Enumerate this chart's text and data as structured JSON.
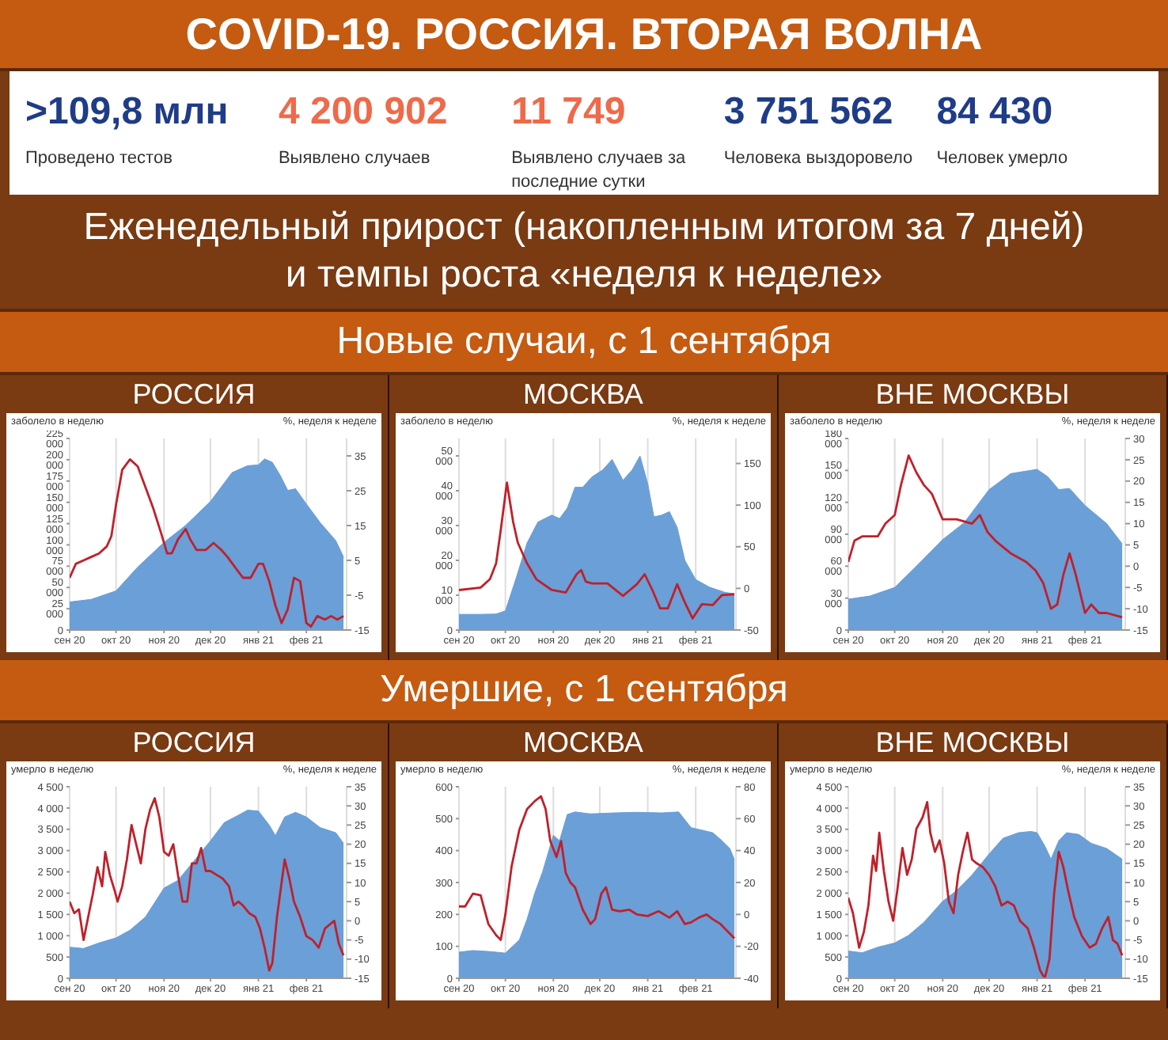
{
  "chart_data": [
    {
      "type": "other",
      "title": "COVID-19. РОССИЯ. ВТОРАЯ ВОЛНА",
      "annotations": [
        ">109,8 млн",
        "Проведено тестов",
        "4 200 902",
        "Выявлено случаев",
        "11 749",
        "Выявлено случаев за последние сутки",
        "3 751 562",
        "Человека выздоровело",
        "84 430",
        "Человек умерло"
      ]
    },
    {
      "type": "other",
      "title": "Еженедельный прирост (накопленным итогом за 7 дней)",
      "subtitle": "и темпы роста «неделя к неделе»"
    },
    {
      "type": "other",
      "title": "Новые случаи, с 1 сентября"
    },
    {
      "type": "area",
      "title": "РОССИЯ",
      "ylabel": "заболело в неделю",
      "y2label": "%, неделя к неделе",
      "grid": "x",
      "xlim": [
        "2020-09-01",
        "2021-02-27"
      ],
      "xticks": [
        {
          "value": "2020-09-01",
          "label": "сен 20"
        },
        {
          "value": "2020-10-01",
          "label": "окт 20"
        },
        {
          "value": "2020-11-01",
          "label": "ноя 20"
        },
        {
          "value": "2020-12-01",
          "label": "дек 20"
        },
        {
          "value": "2021-01-01",
          "label": "янв 21"
        },
        {
          "value": "2021-02-01",
          "label": "фев 21"
        }
      ],
      "ylim": [
        0,
        225000
      ],
      "yticks": [
        0,
        {
          "value": 25000,
          "label": "25 000"
        },
        {
          "value": 50000,
          "label": "50 000"
        },
        {
          "value": 75000,
          "label": "75 000"
        },
        {
          "value": 100000,
          "label": "100 000"
        },
        {
          "value": 125000,
          "label": "125 000"
        },
        {
          "value": 150000,
          "label": "150 000"
        },
        {
          "value": 175000,
          "label": "175 000"
        },
        {
          "value": 200000,
          "label": "200 000"
        },
        {
          "value": 225000,
          "label": "225 000"
        }
      ],
      "y2lim": [
        -15,
        40
      ],
      "y2ticks": [
        -15,
        -5,
        5,
        15,
        25,
        35
      ],
      "series": [
        {
          "type": "area",
          "color": "#6a9fd8",
          "x": [
            "2020-09-01",
            "2020-09-15",
            "2020-10-01",
            "2020-10-15",
            "2020-11-01",
            "2020-11-15",
            "2020-12-01",
            "2020-12-15",
            "2020-12-25",
            "2021-01-01",
            "2021-01-05",
            "2021-01-10",
            "2021-01-15",
            "2021-01-20",
            "2021-01-25",
            "2021-02-01",
            "2021-02-10",
            "2021-02-20",
            "2021-02-25"
          ],
          "values": [
            33000,
            36000,
            46000,
            74000,
            103000,
            123000,
            151000,
            185000,
            193000,
            194000,
            201000,
            197000,
            182000,
            164000,
            166000,
            148000,
            126000,
            105000,
            86000
          ]
        },
        {
          "type": "line",
          "axis": "y2",
          "color": "#c0202a",
          "x": [
            "2020-09-01",
            "2020-09-05",
            "2020-09-10",
            "2020-09-15",
            "2020-09-20",
            "2020-09-25",
            "2020-09-28",
            "2020-10-01",
            "2020-10-05",
            "2020-10-10",
            "2020-10-15",
            "2020-10-20",
            "2020-10-25",
            "2020-10-30",
            "2020-11-03",
            "2020-11-06",
            "2020-11-10",
            "2020-11-15",
            "2020-11-18",
            "2020-11-22",
            "2020-11-28",
            "2020-12-03",
            "2020-12-08",
            "2020-12-12",
            "2020-12-17",
            "2020-12-22",
            "2020-12-27",
            "2021-01-01",
            "2021-01-04",
            "2021-01-08",
            "2021-01-12",
            "2021-01-16",
            "2021-01-20",
            "2021-01-24",
            "2021-01-28",
            "2021-02-01",
            "2021-02-04",
            "2021-02-08",
            "2021-02-13",
            "2021-02-17",
            "2021-02-21",
            "2021-02-25"
          ],
          "values": [
            0,
            4,
            5,
            6,
            7,
            9,
            12,
            21,
            31,
            34,
            32,
            26,
            20,
            13,
            7,
            7,
            11,
            14,
            11,
            8,
            8,
            10,
            8,
            6,
            3,
            0,
            0,
            4,
            4,
            -1,
            -8,
            -13,
            -9,
            0,
            -1,
            -13,
            -14,
            -11,
            -12,
            -11,
            -12,
            -11
          ]
        }
      ]
    },
    {
      "type": "area",
      "title": "МОСКВА",
      "ylabel": "заболело в неделю",
      "y2label": "%, неделя к неделе",
      "grid": "x",
      "xlim": [
        "2020-09-01",
        "2021-02-27"
      ],
      "xticks": [
        {
          "value": "2020-09-01",
          "label": "сен 20"
        },
        {
          "value": "2020-10-01",
          "label": "окт 20"
        },
        {
          "value": "2020-11-01",
          "label": "ноя 20"
        },
        {
          "value": "2020-12-01",
          "label": "дек 20"
        },
        {
          "value": "2021-01-01",
          "label": "янв 21"
        },
        {
          "value": "2021-02-01",
          "label": "фев 21"
        }
      ],
      "ylim": [
        0,
        55000
      ],
      "yticks": [
        0,
        {
          "value": 10000,
          "label": "10 000"
        },
        {
          "value": 20000,
          "label": "20 000"
        },
        {
          "value": 30000,
          "label": "30 000"
        },
        {
          "value": 40000,
          "label": "40 000"
        },
        {
          "value": 50000,
          "label": "50 000"
        }
      ],
      "y2lim": [
        -50,
        180
      ],
      "y2ticks": [
        -50,
        0,
        50,
        100,
        150
      ],
      "series": [
        {
          "type": "area",
          "color": "#6a9fd8",
          "x": [
            "2020-09-01",
            "2020-09-15",
            "2020-09-25",
            "2020-10-01",
            "2020-10-08",
            "2020-10-15",
            "2020-10-22",
            "2020-10-31",
            "2020-11-05",
            "2020-11-10",
            "2020-11-15",
            "2020-11-20",
            "2020-11-26",
            "2020-12-03",
            "2020-12-09",
            "2020-12-16",
            "2020-12-22",
            "2020-12-27",
            "2021-01-01",
            "2021-01-05",
            "2021-01-10",
            "2021-01-15",
            "2021-01-20",
            "2021-01-25",
            "2021-02-01",
            "2021-02-10",
            "2021-02-20",
            "2021-02-26"
          ],
          "values": [
            4500,
            4500,
            4600,
            5500,
            15000,
            25000,
            31000,
            33000,
            32000,
            35000,
            41000,
            41000,
            44000,
            46000,
            49000,
            43000,
            46000,
            50000,
            42000,
            32500,
            33000,
            34000,
            29500,
            20000,
            14500,
            12300,
            10800,
            10400
          ]
        },
        {
          "type": "line",
          "axis": "y2",
          "color": "#c0202a",
          "x": [
            "2020-09-01",
            "2020-09-15",
            "2020-09-21",
            "2020-09-25",
            "2020-09-28",
            "2020-10-02",
            "2020-10-06",
            "2020-10-09",
            "2020-10-15",
            "2020-10-21",
            "2020-10-31",
            "2020-11-09",
            "2020-11-16",
            "2020-11-19",
            "2020-11-22",
            "2020-11-26",
            "2020-12-06",
            "2020-12-16",
            "2020-12-25",
            "2020-12-30",
            "2021-01-04",
            "2021-01-09",
            "2021-01-14",
            "2021-01-20",
            "2021-01-25",
            "2021-01-30",
            "2021-02-05",
            "2021-02-12",
            "2021-02-18",
            "2021-02-26"
          ],
          "values": [
            -2,
            1,
            11,
            30,
            70,
            127,
            80,
            55,
            30,
            11,
            -2,
            -5,
            17,
            22,
            8,
            6,
            6,
            -9,
            5,
            17,
            -2,
            -24,
            -24,
            5,
            -17,
            -36,
            -19,
            -20,
            -8,
            -7
          ]
        }
      ]
    },
    {
      "type": "area",
      "title": "ВНЕ МОСКВЫ",
      "ylabel": "заболело в неделю",
      "y2label": "%, неделя к неделе",
      "grid": "x",
      "xlim": [
        "2020-09-01",
        "2021-02-27"
      ],
      "xticks": [
        {
          "value": "2020-09-01",
          "label": "сен 20"
        },
        {
          "value": "2020-10-01",
          "label": "окт 20"
        },
        {
          "value": "2020-11-01",
          "label": "ноя 20"
        },
        {
          "value": "2020-12-01",
          "label": "дек 20"
        },
        {
          "value": "2021-01-01",
          "label": "янв 21"
        },
        {
          "value": "2021-02-01",
          "label": "фев 21"
        }
      ],
      "ylim": [
        0,
        180000
      ],
      "yticks": [
        0,
        {
          "value": 30000,
          "label": "30 000"
        },
        {
          "value": 60000,
          "label": "60 000"
        },
        {
          "value": 90000,
          "label": "90 000"
        },
        {
          "value": 120000,
          "label": "120 000"
        },
        {
          "value": 150000,
          "label": "150 000"
        },
        {
          "value": 180000,
          "label": "180 000"
        }
      ],
      "y2lim": [
        -15,
        30
      ],
      "y2ticks": [
        -15,
        -10,
        -5,
        0,
        5,
        10,
        15,
        20,
        25,
        30
      ],
      "series": [
        {
          "type": "area",
          "color": "#6a9fd8",
          "x": [
            "2020-09-01",
            "2020-09-15",
            "2020-10-01",
            "2020-10-15",
            "2020-11-01",
            "2020-11-15",
            "2020-12-01",
            "2020-12-15",
            "2021-01-01",
            "2021-01-08",
            "2021-01-15",
            "2021-01-22",
            "2021-02-01",
            "2021-02-15",
            "2021-02-25"
          ],
          "values": [
            29000,
            32000,
            40000,
            60000,
            85000,
            101000,
            132000,
            147000,
            151000,
            144000,
            132000,
            133000,
            117000,
            100000,
            81000
          ]
        },
        {
          "type": "line",
          "axis": "y2",
          "color": "#c0202a",
          "x": [
            "2020-09-01",
            "2020-09-05",
            "2020-09-10",
            "2020-09-20",
            "2020-09-25",
            "2020-10-01",
            "2020-10-05",
            "2020-10-10",
            "2020-10-15",
            "2020-10-20",
            "2020-10-25",
            "2020-11-01",
            "2020-11-10",
            "2020-11-20",
            "2020-11-25",
            "2020-11-30",
            "2020-12-05",
            "2020-12-15",
            "2020-12-25",
            "2020-12-31",
            "2021-01-05",
            "2021-01-10",
            "2021-01-14",
            "2021-01-18",
            "2021-01-22",
            "2021-01-26",
            "2021-02-01",
            "2021-02-05",
            "2021-02-10",
            "2021-02-15",
            "2021-02-25"
          ],
          "values": [
            1,
            6,
            7,
            7,
            10,
            12,
            19,
            26,
            22,
            19,
            17,
            11,
            11,
            10,
            12,
            8,
            6,
            3,
            1,
            -1,
            -4,
            -10,
            -9,
            -2,
            3,
            -2,
            -11,
            -9,
            -11,
            -11,
            -12
          ]
        }
      ]
    },
    {
      "type": "other",
      "title": "Умершие, с 1 сентября"
    },
    {
      "type": "area",
      "title": "РОССИЯ",
      "ylabel": "умерло в неделю",
      "y2label": "%, неделя к неделе",
      "grid": "x",
      "xlim": [
        "2020-09-01",
        "2021-02-27"
      ],
      "xticks": [
        {
          "value": "2020-09-01",
          "label": "сен 20"
        },
        {
          "value": "2020-10-01",
          "label": "окт 20"
        },
        {
          "value": "2020-11-01",
          "label": "ноя 20"
        },
        {
          "value": "2020-12-01",
          "label": "дек 20"
        },
        {
          "value": "2021-01-01",
          "label": "янв 21"
        },
        {
          "value": "2021-02-01",
          "label": "фев 21"
        }
      ],
      "ylim": [
        0,
        4500
      ],
      "yticks": [
        0,
        500,
        {
          "value": 1000,
          "label": "1 000"
        },
        {
          "value": 1500,
          "label": "1 500"
        },
        {
          "value": 2000,
          "label": "2 000"
        },
        {
          "value": 2500,
          "label": "2 500"
        },
        {
          "value": 3000,
          "label": "3 000"
        },
        {
          "value": 3500,
          "label": "3 500"
        },
        {
          "value": 4000,
          "label": "4 000"
        },
        {
          "value": 4500,
          "label": "4 500"
        }
      ],
      "y2lim": [
        -15,
        35
      ],
      "y2ticks": [
        -15,
        -10,
        -5,
        0,
        5,
        10,
        15,
        20,
        25,
        30,
        35
      ],
      "series": [
        {
          "type": "area",
          "color": "#6a9fd8",
          "x": [
            "2020-09-01",
            "2020-09-10",
            "2020-09-20",
            "2020-10-01",
            "2020-10-10",
            "2020-10-20",
            "2020-11-01",
            "2020-11-10",
            "2020-11-20",
            "2020-12-01",
            "2020-12-10",
            "2020-12-20",
            "2020-12-25",
            "2021-01-01",
            "2021-01-08",
            "2021-01-12",
            "2021-01-18",
            "2021-01-25",
            "2021-02-01",
            "2021-02-10",
            "2021-02-20",
            "2021-02-25"
          ],
          "values": [
            730,
            700,
            830,
            950,
            1130,
            1440,
            2120,
            2300,
            2740,
            3230,
            3660,
            3850,
            3950,
            3930,
            3600,
            3350,
            3790,
            3900,
            3790,
            3540,
            3420,
            3170
          ]
        },
        {
          "type": "line",
          "axis": "y2",
          "color": "#c0202a",
          "x": [
            "2020-09-01",
            "2020-09-04",
            "2020-09-07",
            "2020-09-10",
            "2020-09-13",
            "2020-09-16",
            "2020-09-19",
            "2020-09-22",
            "2020-09-24",
            "2020-09-27",
            "2020-09-30",
            "2020-10-02",
            "2020-10-05",
            "2020-10-08",
            "2020-10-11",
            "2020-10-14",
            "2020-10-17",
            "2020-10-20",
            "2020-10-23",
            "2020-10-26",
            "2020-10-29",
            "2020-11-01",
            "2020-11-04",
            "2020-11-07",
            "2020-11-10",
            "2020-11-13",
            "2020-11-16",
            "2020-11-19",
            "2020-11-22",
            "2020-11-25",
            "2020-11-28",
            "2020-12-01",
            "2020-12-05",
            "2020-12-09",
            "2020-12-13",
            "2020-12-16",
            "2020-12-19",
            "2020-12-22",
            "2020-12-26",
            "2020-12-30",
            "2021-01-02",
            "2021-01-05",
            "2021-01-08",
            "2021-01-10",
            "2021-01-13",
            "2021-01-16",
            "2021-01-18",
            "2021-01-21",
            "2021-01-24",
            "2021-01-28",
            "2021-02-01",
            "2021-02-05",
            "2021-02-09",
            "2021-02-13",
            "2021-02-16",
            "2021-02-19",
            "2021-02-22",
            "2021-02-25"
          ],
          "values": [
            5,
            2,
            3,
            -5,
            1,
            7,
            14,
            9,
            18,
            12,
            8,
            5,
            9,
            16,
            25,
            20,
            15,
            24,
            29,
            32,
            27,
            18,
            17,
            20,
            12,
            5,
            5,
            15,
            15,
            19,
            13,
            13,
            12,
            11,
            9,
            4,
            5,
            4,
            2,
            1,
            -2,
            -7,
            -13,
            -11,
            1,
            10,
            16,
            11,
            5,
            1,
            -4,
            -5,
            -7,
            -2,
            -1,
            0,
            -6,
            -9
          ]
        }
      ]
    },
    {
      "type": "area",
      "title": "МОСКВА",
      "ylabel": "умерло в неделю",
      "y2label": "%, неделя к неделе",
      "grid": "x",
      "xlim": [
        "2020-09-01",
        "2021-02-27"
      ],
      "xticks": [
        {
          "value": "2020-09-01",
          "label": "сен 20"
        },
        {
          "value": "2020-10-01",
          "label": "окт 20"
        },
        {
          "value": "2020-11-01",
          "label": "ноя 20"
        },
        {
          "value": "2020-12-01",
          "label": "дек 20"
        },
        {
          "value": "2021-01-01",
          "label": "янв 21"
        },
        {
          "value": "2021-02-01",
          "label": "фев 21"
        }
      ],
      "ylim": [
        0,
        600
      ],
      "yticks": [
        0,
        100,
        200,
        300,
        400,
        500,
        600
      ],
      "y2lim": [
        -40,
        80
      ],
      "y2ticks": [
        -40,
        -20,
        0,
        20,
        40,
        60,
        80
      ],
      "series": [
        {
          "type": "area",
          "color": "#6a9fd8",
          "x": [
            "2020-09-01",
            "2020-09-10",
            "2020-09-20",
            "2020-10-01",
            "2020-10-10",
            "2020-10-15",
            "2020-10-20",
            "2020-10-25",
            "2020-11-01",
            "2020-11-05",
            "2020-11-10",
            "2020-11-15",
            "2020-11-25",
            "2020-12-10",
            "2020-12-25",
            "2021-01-10",
            "2021-01-21",
            "2021-01-29",
            "2021-02-05",
            "2021-02-12",
            "2021-02-18",
            "2021-02-23",
            "2021-02-26"
          ],
          "values": [
            82,
            87,
            84,
            79,
            120,
            185,
            267,
            333,
            448,
            431,
            513,
            521,
            515,
            518,
            520,
            518,
            521,
            472,
            464,
            456,
            431,
            407,
            372
          ]
        },
        {
          "type": "line",
          "axis": "y2",
          "color": "#c0202a",
          "x": [
            "2020-09-01",
            "2020-09-05",
            "2020-09-10",
            "2020-09-15",
            "2020-09-20",
            "2020-09-25",
            "2020-09-28",
            "2020-10-01",
            "2020-10-05",
            "2020-10-10",
            "2020-10-15",
            "2020-10-20",
            "2020-10-24",
            "2020-10-27",
            "2020-10-30",
            "2020-11-03",
            "2020-11-06",
            "2020-11-09",
            "2020-11-12",
            "2020-11-15",
            "2020-11-20",
            "2020-11-25",
            "2020-11-28",
            "2020-12-02",
            "2020-12-05",
            "2020-12-09",
            "2020-12-14",
            "2020-12-20",
            "2020-12-25",
            "2021-01-01",
            "2021-01-08",
            "2021-01-15",
            "2021-01-20",
            "2021-01-25",
            "2021-01-29",
            "2021-02-03",
            "2021-02-08",
            "2021-02-12",
            "2021-02-17",
            "2021-02-22",
            "2021-02-26"
          ],
          "values": [
            5,
            5,
            13,
            12,
            -6,
            -13,
            -16,
            0,
            30,
            53,
            66,
            71,
            74,
            66,
            46,
            36,
            46,
            26,
            20,
            17,
            3,
            -6,
            -3,
            13,
            17,
            3,
            2,
            3,
            0,
            -1,
            2,
            -2,
            2,
            -6,
            -5,
            -2,
            0,
            -3,
            -6,
            -11,
            -15
          ]
        }
      ]
    },
    {
      "type": "area",
      "title": "ВНЕ МОСКВЫ",
      "ylabel": "умерло в неделю",
      "y2label": "%, неделя к неделе",
      "grid": "x",
      "xlim": [
        "2020-09-01",
        "2021-02-27"
      ],
      "xticks": [
        {
          "value": "2020-09-01",
          "label": "сен 20"
        },
        {
          "value": "2020-10-01",
          "label": "окт 20"
        },
        {
          "value": "2020-11-01",
          "label": "ноя 20"
        },
        {
          "value": "2020-12-01",
          "label": "дек 20"
        },
        {
          "value": "2021-01-01",
          "label": "янв 21"
        },
        {
          "value": "2021-02-01",
          "label": "фев 21"
        }
      ],
      "ylim": [
        0,
        4500
      ],
      "yticks": [
        0,
        500,
        {
          "value": 1000,
          "label": "1 000"
        },
        {
          "value": 1500,
          "label": "1 500"
        },
        {
          "value": 2000,
          "label": "2 000"
        },
        {
          "value": 2500,
          "label": "2 500"
        },
        {
          "value": 3000,
          "label": "3 000"
        },
        {
          "value": 3500,
          "label": "3 500"
        },
        {
          "value": 4000,
          "label": "4 000"
        },
        {
          "value": 4500,
          "label": "4 500"
        }
      ],
      "y2lim": [
        -15,
        35
      ],
      "y2ticks": [
        -15,
        -10,
        -5,
        0,
        5,
        10,
        15,
        20,
        25,
        30,
        35
      ],
      "series": [
        {
          "type": "area",
          "color": "#6a9fd8",
          "x": [
            "2020-09-01",
            "2020-09-10",
            "2020-09-20",
            "2020-10-01",
            "2020-10-10",
            "2020-10-20",
            "2020-11-01",
            "2020-11-10",
            "2020-11-20",
            "2020-12-01",
            "2020-12-10",
            "2020-12-20",
            "2020-12-28",
            "2021-01-01",
            "2021-01-06",
            "2021-01-10",
            "2021-01-15",
            "2021-01-20",
            "2021-01-28",
            "2021-02-05",
            "2021-02-15",
            "2021-02-25"
          ],
          "values": [
            640,
            600,
            730,
            830,
            1010,
            1320,
            1810,
            2060,
            2430,
            2920,
            3290,
            3420,
            3450,
            3420,
            3110,
            2800,
            3230,
            3420,
            3380,
            3170,
            3050,
            2800
          ]
        },
        {
          "type": "line",
          "axis": "y2",
          "color": "#c0202a",
          "x": [
            "2020-09-01",
            "2020-09-04",
            "2020-09-08",
            "2020-09-11",
            "2020-09-14",
            "2020-09-17",
            "2020-09-19",
            "2020-09-21",
            "2020-09-24",
            "2020-09-27",
            "2020-09-30",
            "2020-10-03",
            "2020-10-06",
            "2020-10-09",
            "2020-10-12",
            "2020-10-15",
            "2020-10-19",
            "2020-10-22",
            "2020-10-24",
            "2020-10-27",
            "2020-10-30",
            "2020-11-02",
            "2020-11-05",
            "2020-11-08",
            "2020-11-11",
            "2020-11-14",
            "2020-11-17",
            "2020-11-20",
            "2020-11-23",
            "2020-11-27",
            "2020-12-01",
            "2020-12-05",
            "2020-12-09",
            "2020-12-13",
            "2020-12-17",
            "2020-12-21",
            "2020-12-26",
            "2020-12-30",
            "2021-01-03",
            "2021-01-06",
            "2021-01-09",
            "2021-01-12",
            "2021-01-15",
            "2021-01-18",
            "2021-01-21",
            "2021-01-25",
            "2021-01-30",
            "2021-02-04",
            "2021-02-08",
            "2021-02-12",
            "2021-02-16",
            "2021-02-19",
            "2021-02-22",
            "2021-02-25"
          ],
          "values": [
            6,
            2,
            -7,
            -3,
            4,
            17,
            13,
            23,
            13,
            5,
            0,
            9,
            19,
            12,
            16,
            24,
            27,
            31,
            23,
            18,
            21,
            15,
            5,
            2,
            12,
            18,
            23,
            16,
            15,
            14,
            12,
            9,
            4,
            5,
            4,
            0,
            -2,
            -7,
            -13,
            -15,
            -10,
            7,
            18,
            14,
            8,
            1,
            -4,
            -7,
            -6,
            -2,
            1,
            -5,
            -6,
            -9
          ]
        }
      ]
    }
  ]
}
